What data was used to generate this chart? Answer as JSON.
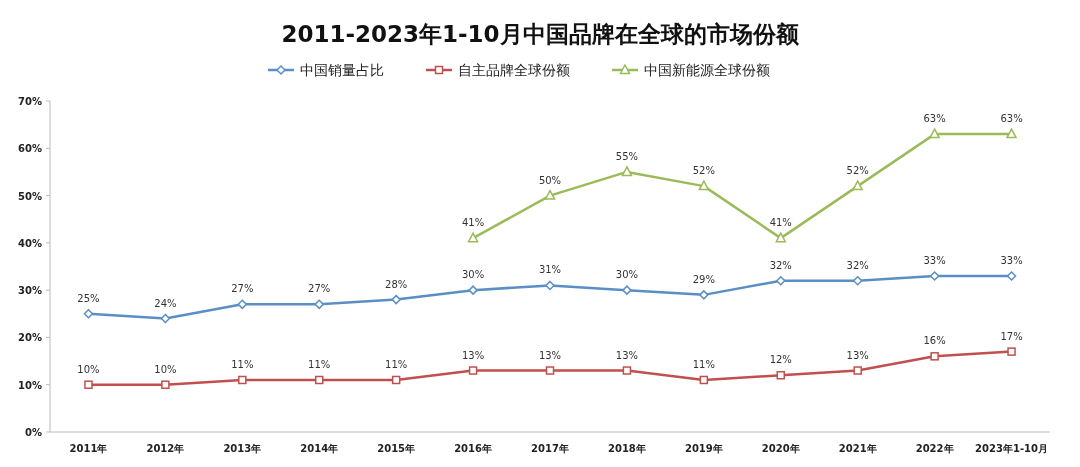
{
  "chart_data": {
    "type": "line",
    "title": "2011-2023年1-10月中国品牌在全球的市场份额",
    "categories": [
      "2011年",
      "2012年",
      "2013年",
      "2014年",
      "2015年",
      "2016年",
      "2017年",
      "2018年",
      "2019年",
      "2020年",
      "2021年",
      "2022年",
      "2023年1-10月"
    ],
    "series": [
      {
        "name": "中国销量占比",
        "color": "#5b8ec4",
        "marker": "diamond",
        "values": [
          25,
          24,
          27,
          27,
          28,
          30,
          31,
          30,
          29,
          32,
          32,
          33,
          33
        ],
        "value_labels": [
          "25%",
          "24%",
          "27%",
          "27%",
          "28%",
          "30%",
          "31%",
          "30%",
          "29%",
          "32%",
          "32%",
          "33%",
          "33%"
        ]
      },
      {
        "name": "自主品牌全球份额",
        "color": "#c0504d",
        "marker": "square",
        "values": [
          10,
          10,
          11,
          11,
          11,
          13,
          13,
          13,
          11,
          12,
          13,
          16,
          17
        ],
        "value_labels": [
          "10%",
          "10%",
          "11%",
          "11%",
          "11%",
          "13%",
          "13%",
          "13%",
          "11%",
          "12%",
          "13%",
          "16%",
          "17%"
        ]
      },
      {
        "name": "中国新能源全球份额",
        "color": "#9bbb59",
        "marker": "triangle",
        "values": [
          null,
          null,
          null,
          null,
          null,
          41,
          50,
          55,
          52,
          41,
          52,
          63,
          63
        ],
        "value_labels": [
          null,
          null,
          null,
          null,
          null,
          "41%",
          "50%",
          "55%",
          "52%",
          "41%",
          "52%",
          "63%",
          "63%"
        ]
      }
    ],
    "ylim": [
      0,
      70
    ],
    "yticks": [
      {
        "value": 0,
        "label": "0%"
      },
      {
        "value": 10,
        "label": "10%"
      },
      {
        "value": 20,
        "label": "20%"
      },
      {
        "value": 30,
        "label": "30%"
      },
      {
        "value": 40,
        "label": "40%"
      },
      {
        "value": 50,
        "label": "50%"
      },
      {
        "value": 60,
        "label": "60%"
      },
      {
        "value": 70,
        "label": "70%"
      }
    ],
    "legend": "top"
  }
}
